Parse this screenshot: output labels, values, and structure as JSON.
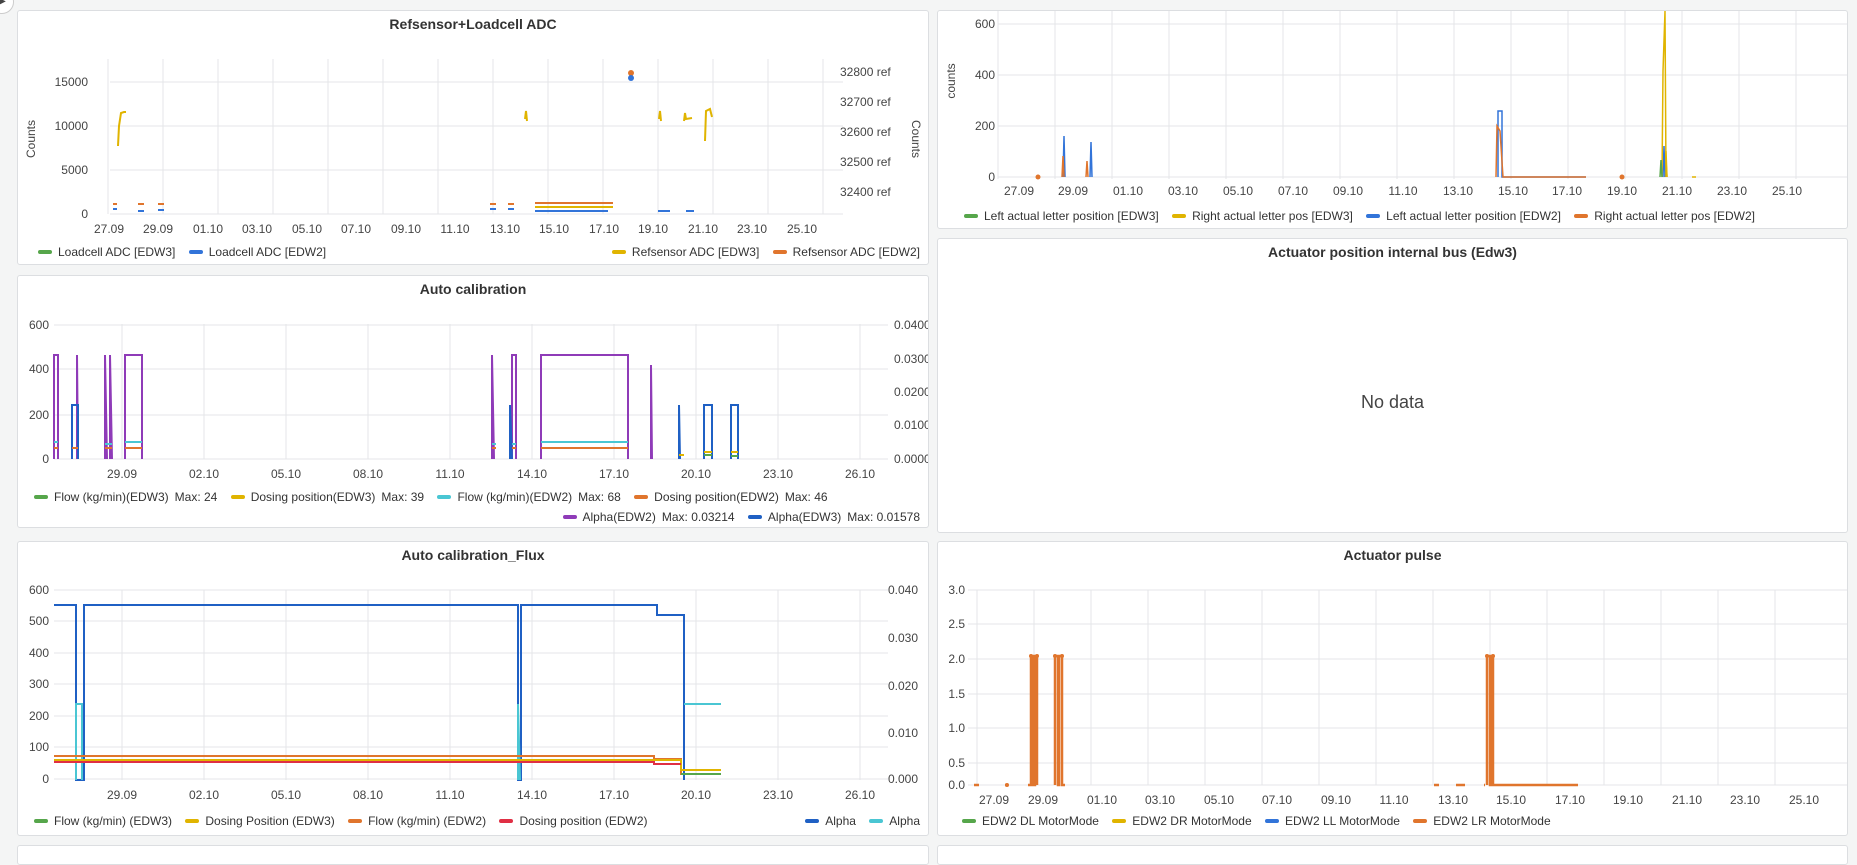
{
  "colors": {
    "green": "#56a64b",
    "yellow": "#e0b400",
    "blue": "#3274d9",
    "orange": "#e0752d",
    "red": "#e02f44",
    "purple": "#8f3bb8",
    "darkblue": "#1f60c4",
    "cyan": "#4ac6d3",
    "lightorange": "#f2a45b"
  },
  "icons": {
    "collapse": "chevron-right-icon"
  },
  "panels": {
    "p1": {
      "title": "Refsensor+Loadcell ADC",
      "ylabel_left": "Counts",
      "ylabel_right": "Counts",
      "y_left_ticks": [
        "15000",
        "10000",
        "5000",
        "0"
      ],
      "y_right_ticks": [
        "32800 ref",
        "32700 ref",
        "32600 ref",
        "32500 ref",
        "32400 ref"
      ],
      "x_ticks": [
        "27.09",
        "29.09",
        "01.10",
        "03.10",
        "05.10",
        "07.10",
        "09.10",
        "11.10",
        "13.10",
        "15.10",
        "17.10",
        "19.10",
        "21.10",
        "23.10",
        "25.10"
      ],
      "legend_left": [
        {
          "label": "Loadcell ADC [EDW3]",
          "color": "#56a64b"
        },
        {
          "label": "Loadcell ADC [EDW2]",
          "color": "#3274d9"
        }
      ],
      "legend_right": [
        {
          "label": "Refsensor ADC [EDW3]",
          "color": "#e0b400"
        },
        {
          "label": "Refsensor ADC [EDW2]",
          "color": "#e0752d"
        }
      ]
    },
    "p2": {
      "ylabel_left": "counts",
      "y_left_ticks": [
        "600",
        "400",
        "200",
        "0"
      ],
      "x_ticks": [
        "27.09",
        "29.09",
        "01.10",
        "03.10",
        "05.10",
        "07.10",
        "09.10",
        "11.10",
        "13.10",
        "15.10",
        "17.10",
        "19.10",
        "21.10",
        "23.10",
        "25.10"
      ],
      "legend": [
        {
          "label": "Left actual letter position [EDW3]",
          "color": "#56a64b"
        },
        {
          "label": "Right actual letter pos [EDW3]",
          "color": "#e0b400"
        },
        {
          "label": "Left actual letter position [EDW2]",
          "color": "#3274d9"
        },
        {
          "label": "Right actual letter pos [EDW2]",
          "color": "#e0752d"
        }
      ]
    },
    "p3": {
      "title": "Auto calibration",
      "y_left_ticks": [
        "600",
        "400",
        "200",
        "0"
      ],
      "y_right_ticks": [
        "0.0400",
        "0.0300",
        "0.0200",
        "0.0100",
        "0.0000"
      ],
      "x_ticks": [
        "29.09",
        "02.10",
        "05.10",
        "08.10",
        "11.10",
        "14.10",
        "17.10",
        "20.10",
        "23.10",
        "26.10"
      ],
      "legend_row1": [
        {
          "label": "Flow (kg/min)(EDW3)",
          "max": "Max: 24",
          "color": "#56a64b"
        },
        {
          "label": "Dosing position(EDW3)",
          "max": "Max: 39",
          "color": "#e0b400"
        },
        {
          "label": "Flow (kg/min)(EDW2)",
          "max": "Max: 68",
          "color": "#4ac6d3"
        },
        {
          "label": "Dosing position(EDW2)",
          "max": "Max: 46",
          "color": "#e0752d"
        }
      ],
      "legend_row2": [
        {
          "label": "Alpha(EDW2)",
          "max": "Max: 0.03214",
          "color": "#8f3bb8"
        },
        {
          "label": "Alpha(EDW3)",
          "max": "Max: 0.01578",
          "color": "#1f60c4"
        }
      ]
    },
    "p4": {
      "title": "Actuator position internal bus (Edw3)",
      "no_data": "No data"
    },
    "p5": {
      "title": "Auto calibration_Flux",
      "y_left_ticks": [
        "600",
        "500",
        "400",
        "300",
        "200",
        "100",
        "0"
      ],
      "y_right_ticks": [
        "0.040",
        "0.030",
        "0.020",
        "0.010",
        "0.000"
      ],
      "x_ticks": [
        "29.09",
        "02.10",
        "05.10",
        "08.10",
        "11.10",
        "14.10",
        "17.10",
        "20.10",
        "23.10",
        "26.10"
      ],
      "legend_left": [
        {
          "label": "Flow (kg/min) (EDW3)",
          "color": "#56a64b"
        },
        {
          "label": "Dosing Position (EDW3)",
          "color": "#e0b400"
        },
        {
          "label": "Flow (kg/min) (EDW2)",
          "color": "#e0752d"
        },
        {
          "label": "Dosing position (EDW2)",
          "color": "#e02f44"
        }
      ],
      "legend_right": [
        {
          "label": "Alpha",
          "color": "#1f60c4"
        },
        {
          "label": "Alpha",
          "color": "#4ac6d3"
        }
      ]
    },
    "p6": {
      "title": "Actuator pulse",
      "y_left_ticks": [
        "3.0",
        "2.5",
        "2.0",
        "1.5",
        "1.0",
        "0.5",
        "0.0"
      ],
      "x_ticks": [
        "27.09",
        "29.09",
        "01.10",
        "03.10",
        "05.10",
        "07.10",
        "09.10",
        "11.10",
        "13.10",
        "15.10",
        "17.10",
        "19.10",
        "21.10",
        "23.10",
        "25.10"
      ],
      "legend": [
        {
          "label": "EDW2 DL MotorMode",
          "color": "#56a64b"
        },
        {
          "label": "EDW2 DR MotorMode",
          "color": "#e0b400"
        },
        {
          "label": "EDW2 LL MotorMode",
          "color": "#3274d9"
        },
        {
          "label": "EDW2 LR MotorMode",
          "color": "#e0752d"
        }
      ]
    }
  }
}
